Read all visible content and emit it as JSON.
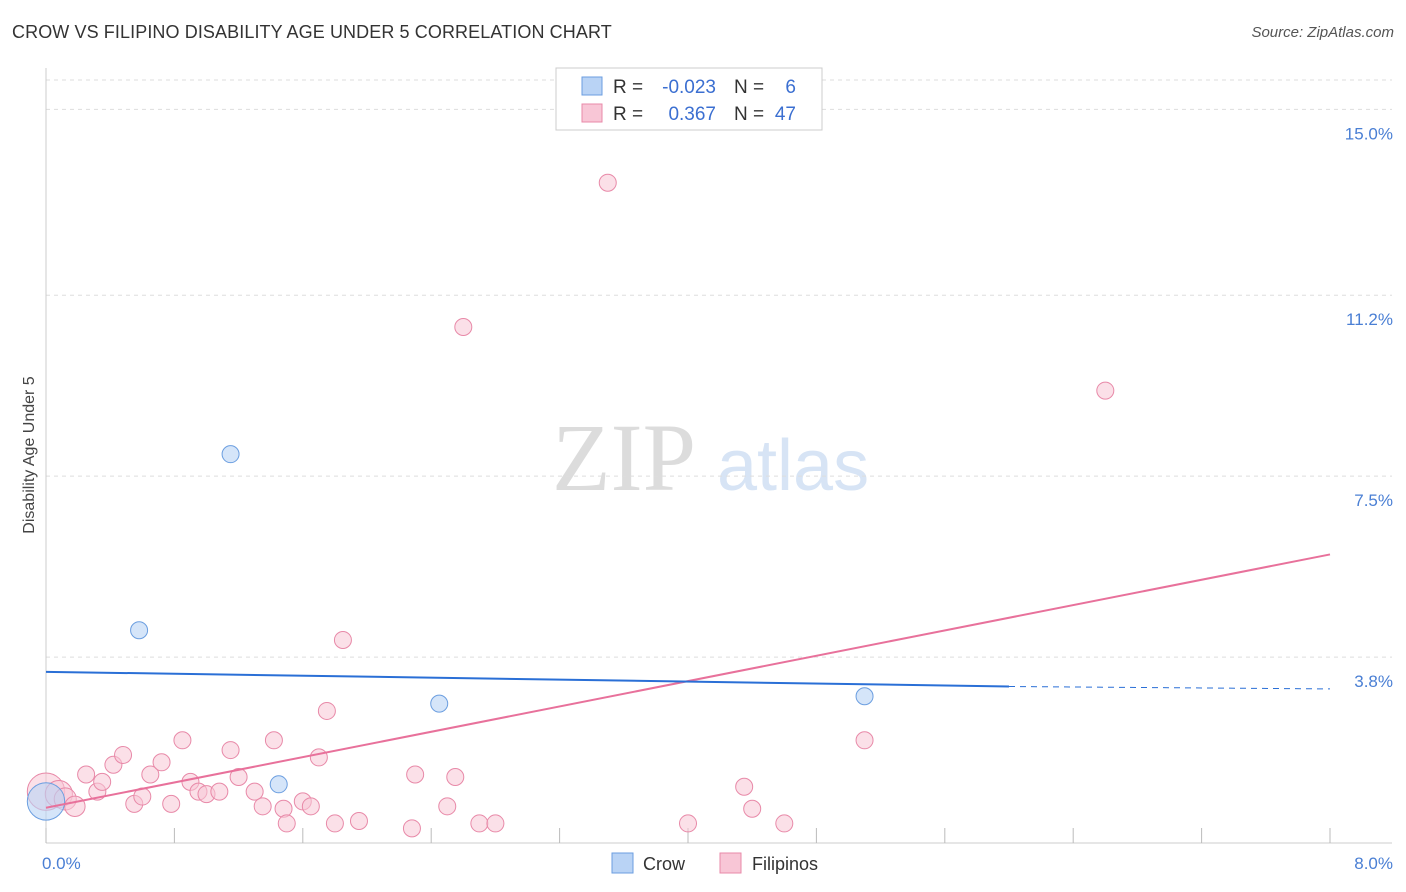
{
  "title": "CROW VS FILIPINO DISABILITY AGE UNDER 5 CORRELATION CHART",
  "source": "Source: ZipAtlas.com",
  "watermark": {
    "zip": "ZIP",
    "atlas": "atlas"
  },
  "colors": {
    "crow_fill": "#b9d3f5",
    "crow_stroke": "#6b9ee0",
    "crow_line": "#2a6fd6",
    "filipino_fill": "#f8c6d6",
    "filipino_stroke": "#e889a8",
    "filipino_line": "#e8719b",
    "grid": "#dddddd",
    "axis_text": "#4a7fd4"
  },
  "legend": {
    "rows": [
      {
        "r_label": "R =",
        "r_value": "-0.023",
        "n_label": "N =",
        "n_value": "6"
      },
      {
        "r_label": "R =",
        "r_value": "0.367",
        "n_label": "N =",
        "n_value": "47"
      }
    ]
  },
  "bottom_legend": {
    "crow": "Crow",
    "filipinos": "Filipinos"
  },
  "chart_data": {
    "type": "scatter",
    "title": "CROW VS FILIPINO DISABILITY AGE UNDER 5 CORRELATION CHART",
    "xlabel": "",
    "ylabel": "Disability Age Under 5",
    "xlim": [
      0,
      8.0
    ],
    "ylim": [
      0,
      15.6
    ],
    "x_tick_labels": [
      "0.0%",
      "8.0%"
    ],
    "y_ticks": [
      3.8,
      7.5,
      11.2,
      15.0
    ],
    "y_tick_labels": [
      "3.8%",
      "7.5%",
      "11.2%",
      "15.0%"
    ],
    "series": [
      {
        "name": "Crow",
        "points": [
          {
            "x": 0.0,
            "y": 0.85,
            "s": 2.2
          },
          {
            "x": 0.58,
            "y": 4.35,
            "s": 1
          },
          {
            "x": 1.15,
            "y": 7.95,
            "s": 1
          },
          {
            "x": 1.45,
            "y": 1.2,
            "s": 1
          },
          {
            "x": 2.45,
            "y": 2.85,
            "s": 1
          },
          {
            "x": 5.1,
            "y": 3.0,
            "s": 1
          }
        ],
        "trend": {
          "x0": 0.0,
          "y0": 3.5,
          "x1": 6.0,
          "y1": 3.2,
          "dash_to_x": 8.0,
          "dash_to_y": 3.15
        }
      },
      {
        "name": "Filipinos",
        "points": [
          {
            "x": 0.0,
            "y": 1.05,
            "s": 2.2
          },
          {
            "x": 0.08,
            "y": 1.0,
            "s": 1.6
          },
          {
            "x": 0.12,
            "y": 0.9,
            "s": 1.3
          },
          {
            "x": 0.18,
            "y": 0.75,
            "s": 1.2
          },
          {
            "x": 0.25,
            "y": 1.4,
            "s": 1
          },
          {
            "x": 0.32,
            "y": 1.05,
            "s": 1
          },
          {
            "x": 0.35,
            "y": 1.25,
            "s": 1
          },
          {
            "x": 0.42,
            "y": 1.6,
            "s": 1
          },
          {
            "x": 0.48,
            "y": 1.8,
            "s": 1
          },
          {
            "x": 0.55,
            "y": 0.8,
            "s": 1
          },
          {
            "x": 0.6,
            "y": 0.95,
            "s": 1
          },
          {
            "x": 0.65,
            "y": 1.4,
            "s": 1
          },
          {
            "x": 0.72,
            "y": 1.65,
            "s": 1
          },
          {
            "x": 0.78,
            "y": 0.8,
            "s": 1
          },
          {
            "x": 0.85,
            "y": 2.1,
            "s": 1
          },
          {
            "x": 0.9,
            "y": 1.25,
            "s": 1
          },
          {
            "x": 0.95,
            "y": 1.05,
            "s": 1
          },
          {
            "x": 1.0,
            "y": 1.0,
            "s": 1
          },
          {
            "x": 1.08,
            "y": 1.05,
            "s": 1
          },
          {
            "x": 1.15,
            "y": 1.9,
            "s": 1
          },
          {
            "x": 1.2,
            "y": 1.35,
            "s": 1
          },
          {
            "x": 1.3,
            "y": 1.05,
            "s": 1
          },
          {
            "x": 1.35,
            "y": 0.75,
            "s": 1
          },
          {
            "x": 1.42,
            "y": 2.1,
            "s": 1
          },
          {
            "x": 1.48,
            "y": 0.7,
            "s": 1
          },
          {
            "x": 1.5,
            "y": 0.4,
            "s": 1
          },
          {
            "x": 1.6,
            "y": 0.85,
            "s": 1
          },
          {
            "x": 1.65,
            "y": 0.75,
            "s": 1
          },
          {
            "x": 1.7,
            "y": 1.75,
            "s": 1
          },
          {
            "x": 1.75,
            "y": 2.7,
            "s": 1
          },
          {
            "x": 1.8,
            "y": 0.4,
            "s": 1
          },
          {
            "x": 1.85,
            "y": 4.15,
            "s": 1
          },
          {
            "x": 1.95,
            "y": 0.45,
            "s": 1
          },
          {
            "x": 2.28,
            "y": 0.3,
            "s": 1
          },
          {
            "x": 2.3,
            "y": 1.4,
            "s": 1
          },
          {
            "x": 2.5,
            "y": 0.75,
            "s": 1
          },
          {
            "x": 2.55,
            "y": 1.35,
            "s": 1
          },
          {
            "x": 2.6,
            "y": 10.55,
            "s": 1
          },
          {
            "x": 2.7,
            "y": 0.4,
            "s": 1
          },
          {
            "x": 2.8,
            "y": 0.4,
            "s": 1
          },
          {
            "x": 3.5,
            "y": 13.5,
            "s": 1
          },
          {
            "x": 4.0,
            "y": 0.4,
            "s": 1
          },
          {
            "x": 4.35,
            "y": 1.15,
            "s": 1
          },
          {
            "x": 4.4,
            "y": 0.7,
            "s": 1
          },
          {
            "x": 4.6,
            "y": 0.4,
            "s": 1
          },
          {
            "x": 5.1,
            "y": 2.1,
            "s": 1
          },
          {
            "x": 6.6,
            "y": 9.25,
            "s": 1
          }
        ],
        "trend": {
          "x0": 0.0,
          "y0": 0.72,
          "x1": 8.0,
          "y1": 5.9
        }
      }
    ]
  }
}
